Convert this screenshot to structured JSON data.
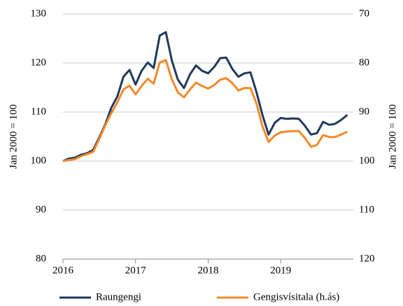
{
  "chart_data": {
    "type": "line",
    "y_label": "Jan 2000  = 100",
    "y2_label": "Jan 2000  = 100",
    "x": [
      2016,
      2016.083,
      2016.167,
      2016.25,
      2016.333,
      2016.417,
      2016.5,
      2016.583,
      2016.667,
      2016.75,
      2016.833,
      2016.917,
      2017,
      2017.083,
      2017.167,
      2017.25,
      2017.333,
      2017.417,
      2017.5,
      2017.583,
      2017.667,
      2017.75,
      2017.833,
      2017.917,
      2018,
      2018.083,
      2018.167,
      2018.25,
      2018.333,
      2018.417,
      2018.5,
      2018.583,
      2018.667,
      2018.75,
      2018.833,
      2018.917,
      2019,
      2019.083,
      2019.167,
      2019.25,
      2019.333,
      2019.417,
      2019.5,
      2019.583,
      2019.667,
      2019.75,
      2019.833,
      2019.917
    ],
    "xlim": [
      2016,
      2020
    ],
    "xticks": [
      2016,
      2017,
      2018,
      2019
    ],
    "ylim": [
      80,
      130
    ],
    "yticks": [
      80,
      90,
      100,
      110,
      120,
      130
    ],
    "y2lim": [
      120,
      70
    ],
    "y2ticks": [
      70,
      80,
      90,
      100,
      110,
      120
    ],
    "grid": true,
    "legend": "bottom",
    "series": [
      {
        "name": "Raungengi",
        "color": "#1f3a5c",
        "values": [
          100,
          100.5,
          100.7,
          101.3,
          101.6,
          102.3,
          104.8,
          107.5,
          110.9,
          113.2,
          117.2,
          118.6,
          115.6,
          118.4,
          120.1,
          119.0,
          125.6,
          126.3,
          120.5,
          116.6,
          114.9,
          117.7,
          119.5,
          118.4,
          117.9,
          119.2,
          121.0,
          121.1,
          118.8,
          117.2,
          117.9,
          118.1,
          114.0,
          109.3,
          105.4,
          107.8,
          108.8,
          108.6,
          108.7,
          108.6,
          107.2,
          105.4,
          105.7,
          108.0,
          107.4,
          107.6,
          108.4,
          109.4
        ]
      },
      {
        "name": "Gengisvísitala (h.ás)",
        "color": "#f5892a",
        "axis": "y2",
        "values": [
          100,
          99.8,
          99.6,
          99,
          98.6,
          98.1,
          95.5,
          92.7,
          90.2,
          88,
          85.4,
          84.6,
          86.4,
          84.7,
          83.2,
          84.2,
          79.9,
          79.4,
          83.3,
          86,
          87,
          85.4,
          84,
          84.7,
          85.2,
          84.5,
          83.4,
          83.1,
          84.1,
          85.6,
          85.1,
          85.1,
          88.3,
          93,
          96.1,
          94.8,
          94.1,
          94,
          93.9,
          93.9,
          95.3,
          97.1,
          96.7,
          94.7,
          95.1,
          95.1,
          94.6,
          94
        ]
      }
    ]
  }
}
